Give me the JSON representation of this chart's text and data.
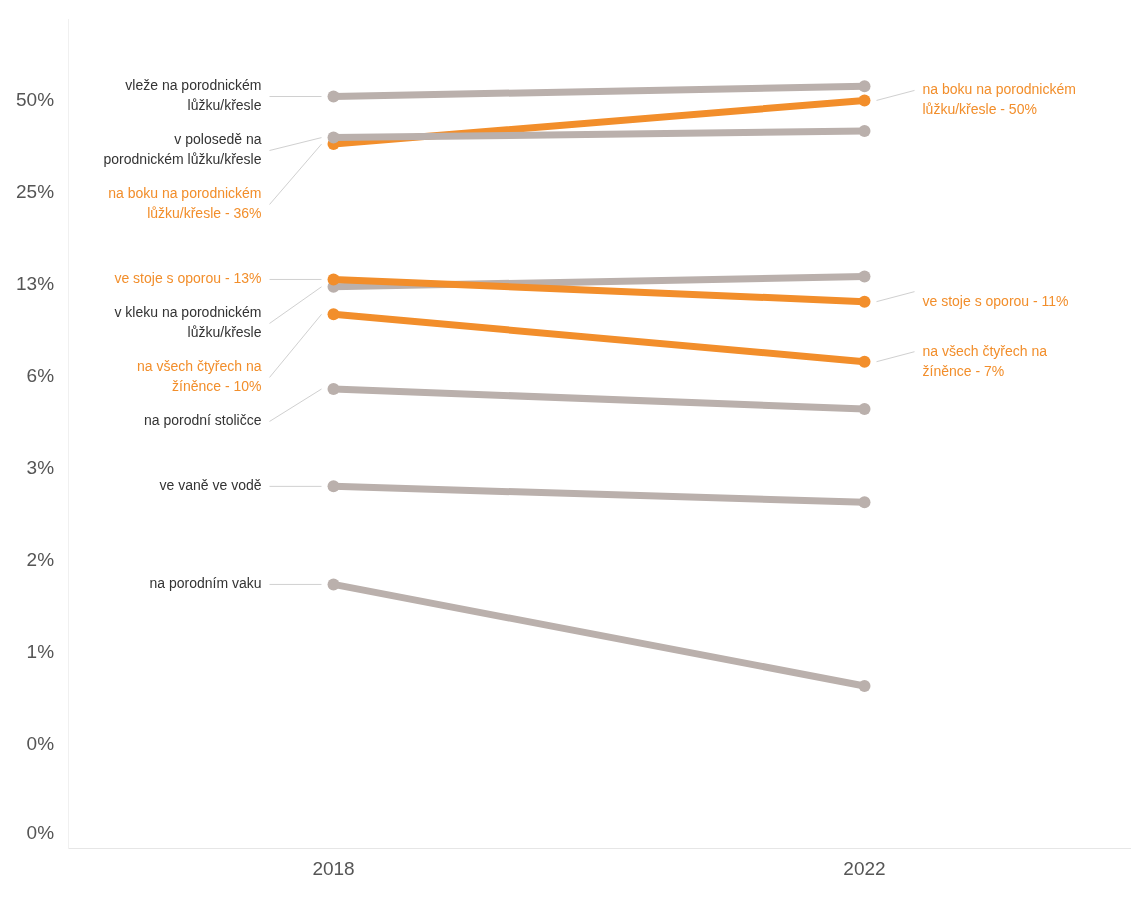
{
  "chart_data": {
    "type": "line",
    "categories": [
      "2018",
      "2022"
    ],
    "series": [
      {
        "name": "vleže na porodnickém lůžku/křesle",
        "color": "#bab0ac",
        "values": [
          51.5,
          55.6
        ]
      },
      {
        "name": "v polosedě na porodnickém lůžku/křesle",
        "color": "#bab0ac",
        "values": [
          37.8,
          39.7
        ]
      },
      {
        "name": "na boku na porodnickém lůžku/křesle -",
        "color": "#f28e2b",
        "values": [
          36,
          50
        ],
        "value_labels": [
          "36%",
          "50%"
        ]
      },
      {
        "name": "ve stoje s oporou -",
        "color": "#f28e2b",
        "values": [
          13,
          11
        ],
        "value_labels": [
          "13%",
          "11%"
        ]
      },
      {
        "name": "v kleku na porodnickém lůžku/křesle",
        "color": "#bab0ac",
        "values": [
          12.3,
          13.3
        ]
      },
      {
        "name": "na všech čtyřech na žíněnce -",
        "color": "#f28e2b",
        "values": [
          10,
          7
        ],
        "value_labels": [
          "10%",
          "7%"
        ]
      },
      {
        "name": "na porodní stoličce",
        "color": "#bab0ac",
        "values": [
          5.7,
          4.9
        ]
      },
      {
        "name": "ve vaně ve vodě",
        "color": "#bab0ac",
        "values": [
          2.74,
          2.43
        ]
      },
      {
        "name": "na porodním vaku",
        "color": "#bab0ac",
        "values": [
          1.31,
          0.61
        ]
      }
    ],
    "log": "y",
    "ylim": [
      0.18,
      92
    ],
    "yticks": [
      {
        "value": 50,
        "label": "50%"
      },
      {
        "value": 25,
        "label": "25%"
      },
      {
        "value": 12.5,
        "label": "13%"
      },
      {
        "value": 6.25,
        "label": "6%"
      },
      {
        "value": 3.125,
        "label": "3%"
      },
      {
        "value": 1.5625,
        "label": "2%"
      },
      {
        "value": 0.78125,
        "label": "1%"
      },
      {
        "value": 0.390625,
        "label": "0%"
      },
      {
        "value": 0.2,
        "label": "0%"
      }
    ],
    "grid": false,
    "legend": false,
    "marker": "circle",
    "line_style": "solid"
  }
}
